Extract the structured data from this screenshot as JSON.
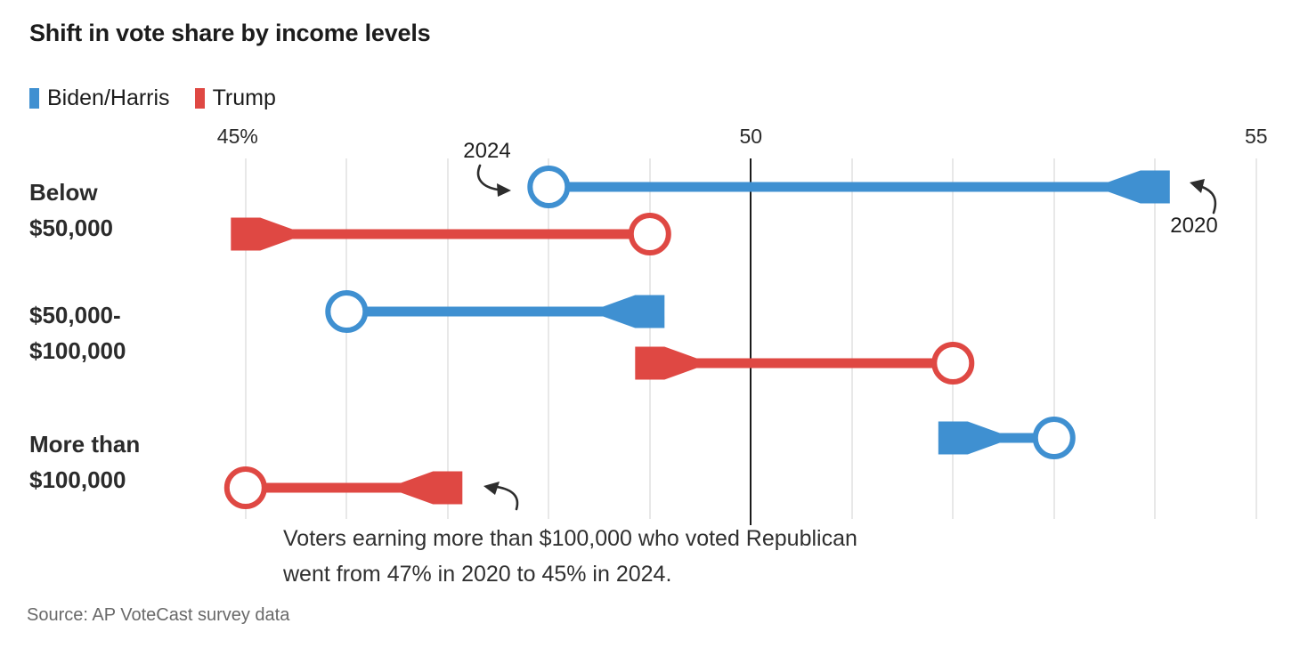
{
  "title": "Shift in vote share by income levels",
  "legend": {
    "items": [
      {
        "label": "Biden/Harris",
        "color": "#3f90d1"
      },
      {
        "label": "Trump",
        "color": "#df4843"
      }
    ]
  },
  "axis": {
    "ticks": [
      {
        "value": 45,
        "label": "45%"
      },
      {
        "value": 50,
        "label": "50"
      },
      {
        "value": 55,
        "label": "55"
      }
    ]
  },
  "annotations": {
    "end_year_label": "2024",
    "start_year_label": "2020",
    "note_line1": "Voters earning more than $100,000 who voted Republican",
    "note_line2": "went from 47% in 2020 to 45% in 2024."
  },
  "source": "Source: AP VoteCast survey data",
  "colors": {
    "biden": "#3f90d1",
    "trump": "#df4843",
    "grid": "#e8e8e8",
    "reference_line": "#1b1b1b",
    "text": "#1c1c1c",
    "muted": "#696969"
  },
  "chart_data": {
    "type": "arrow",
    "title": "Shift in vote share by income levels",
    "xlabel": "",
    "ylabel": "",
    "xlim": [
      45,
      55
    ],
    "gridline_values": [
      45,
      46,
      47,
      48,
      49,
      51,
      52,
      53,
      54,
      55
    ],
    "reference_line": 50,
    "legend_position": "top-left",
    "marker_2020": "flared-tail",
    "marker_2024": "open-circle",
    "categories": [
      {
        "line1": "Below",
        "line2": "$50,000"
      },
      {
        "line1": "$50,000-",
        "line2": "$100,000"
      },
      {
        "line1": "More than",
        "line2": "$100,000"
      }
    ],
    "series": [
      {
        "name": "Biden/Harris",
        "color": "#3f90d1",
        "values_2020": [
          54,
          49,
          52
        ],
        "values_2024": [
          48,
          46,
          53
        ]
      },
      {
        "name": "Trump",
        "color": "#df4843",
        "values_2020": [
          45,
          49,
          47
        ],
        "values_2024": [
          49,
          52,
          45
        ]
      }
    ]
  }
}
